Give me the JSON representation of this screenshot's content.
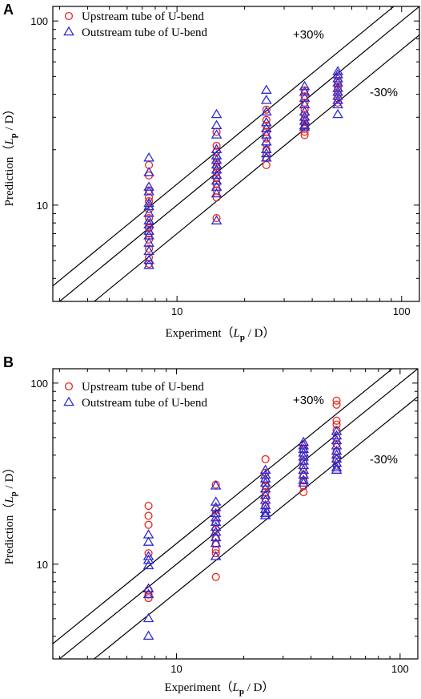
{
  "chart_data": [
    {
      "panel_label": "A",
      "type": "scatter",
      "x_scale": "log",
      "y_scale": "log",
      "xlim": [
        2.8,
        120
      ],
      "ylim": [
        3.0,
        120
      ],
      "x_ticks": [
        10,
        100
      ],
      "y_ticks": [
        10,
        100
      ],
      "x_tick_labels": [
        "10",
        "100"
      ],
      "y_tick_labels": [
        "10",
        "100"
      ],
      "xlabel": {
        "prefix": "Experiment（",
        "var": "L",
        "sub": "p",
        "suffix": " / D）"
      },
      "ylabel": {
        "prefix": "Prediction（",
        "var": "L",
        "sub": "p",
        "suffix": " / D）"
      },
      "reference_lines": [
        {
          "label": "+30%",
          "factor": 1.3
        },
        {
          "label": "",
          "factor": 1.0
        },
        {
          "label": "-30%",
          "factor": 0.7
        }
      ],
      "legend_position": "top-left",
      "series": [
        {
          "name": "Upstream tube of U-bend",
          "marker": "circle",
          "color": "#e8261f",
          "points": [
            [
              7.5,
              16.5
            ],
            [
              7.5,
              14.5
            ],
            [
              7.5,
              12
            ],
            [
              7.5,
              11
            ],
            [
              7.5,
              10.5
            ],
            [
              7.5,
              9.5
            ],
            [
              7.5,
              8.5
            ],
            [
              7.5,
              8
            ],
            [
              7.5,
              7.5
            ],
            [
              7.5,
              7
            ],
            [
              7.5,
              6.5
            ],
            [
              7.5,
              5.8
            ],
            [
              7.5,
              5.2
            ],
            [
              7.5,
              4.8
            ],
            [
              15,
              25
            ],
            [
              15,
              21
            ],
            [
              15,
              19.5
            ],
            [
              15,
              18
            ],
            [
              15,
              17
            ],
            [
              15,
              16
            ],
            [
              15,
              15
            ],
            [
              15,
              14
            ],
            [
              15,
              13
            ],
            [
              15,
              12
            ],
            [
              15,
              11
            ],
            [
              15,
              8.5
            ],
            [
              25,
              33
            ],
            [
              25,
              29
            ],
            [
              25,
              27
            ],
            [
              25,
              25
            ],
            [
              25,
              23
            ],
            [
              25,
              21.5
            ],
            [
              25,
              20
            ],
            [
              25,
              18
            ],
            [
              25,
              16.5
            ],
            [
              37,
              42
            ],
            [
              37,
              39
            ],
            [
              37,
              36
            ],
            [
              37,
              33
            ],
            [
              37,
              31
            ],
            [
              37,
              29
            ],
            [
              37,
              27.5
            ],
            [
              37,
              26
            ],
            [
              37,
              25
            ],
            [
              37,
              24
            ],
            [
              52,
              50
            ],
            [
              52,
              47
            ],
            [
              52,
              44
            ],
            [
              52,
              42
            ],
            [
              52,
              40
            ],
            [
              52,
              38
            ],
            [
              52,
              36
            ]
          ]
        },
        {
          "name": "Outstream tube of U-bend",
          "marker": "triangle",
          "color": "#2b2bd6",
          "points": [
            [
              7.5,
              18
            ],
            [
              7.5,
              15
            ],
            [
              7.5,
              12.5
            ],
            [
              7.5,
              11.8
            ],
            [
              7.5,
              10.2
            ],
            [
              7.5,
              9.8
            ],
            [
              7.5,
              9
            ],
            [
              7.5,
              8.2
            ],
            [
              7.5,
              7.8
            ],
            [
              7.5,
              7.2
            ],
            [
              7.5,
              6.8
            ],
            [
              7.5,
              6.2
            ],
            [
              7.5,
              5.6
            ],
            [
              7.5,
              5.0
            ],
            [
              7.5,
              4.7
            ],
            [
              15,
              31
            ],
            [
              15,
              27
            ],
            [
              15,
              24
            ],
            [
              15,
              20
            ],
            [
              15,
              18.5
            ],
            [
              15,
              17.5
            ],
            [
              15,
              16.5
            ],
            [
              15,
              15.5
            ],
            [
              15,
              14.5
            ],
            [
              15,
              13.5
            ],
            [
              15,
              12.5
            ],
            [
              15,
              11.5
            ],
            [
              15,
              8.2
            ],
            [
              25,
              42
            ],
            [
              25,
              37
            ],
            [
              25,
              32
            ],
            [
              25,
              28
            ],
            [
              25,
              26
            ],
            [
              25,
              24
            ],
            [
              25,
              22
            ],
            [
              25,
              20
            ],
            [
              25,
              19
            ],
            [
              25,
              18
            ],
            [
              37,
              44
            ],
            [
              37,
              41
            ],
            [
              37,
              38
            ],
            [
              37,
              35
            ],
            [
              37,
              32
            ],
            [
              37,
              30
            ],
            [
              37,
              28.5
            ],
            [
              37,
              27
            ],
            [
              37,
              26.5
            ],
            [
              52,
              53
            ],
            [
              52,
              51
            ],
            [
              52,
              48.5
            ],
            [
              52,
              46
            ],
            [
              52,
              43
            ],
            [
              52,
              41
            ],
            [
              52,
              39
            ],
            [
              52,
              37
            ],
            [
              52,
              35
            ],
            [
              52,
              31
            ]
          ]
        }
      ]
    },
    {
      "panel_label": "B",
      "type": "scatter",
      "x_scale": "log",
      "y_scale": "log",
      "xlim": [
        2.8,
        120
      ],
      "ylim": [
        3.0,
        120
      ],
      "x_ticks": [
        10,
        100
      ],
      "y_ticks": [
        10,
        100
      ],
      "x_tick_labels": [
        "10",
        "100"
      ],
      "y_tick_labels": [
        "10",
        "100"
      ],
      "xlabel": {
        "prefix": "Experiment（",
        "var": "L",
        "sub": "p",
        "suffix": " / D）"
      },
      "ylabel": {
        "prefix": "Prediction（",
        "var": "L",
        "sub": "p",
        "suffix": " / D）"
      },
      "reference_lines": [
        {
          "label": "+30%",
          "factor": 1.3
        },
        {
          "label": "",
          "factor": 1.0
        },
        {
          "label": "-30%",
          "factor": 0.7
        }
      ],
      "legend_position": "top-left",
      "series": [
        {
          "name": "Upstream tube of U-bend",
          "marker": "circle",
          "color": "#e8261f",
          "points": [
            [
              7.5,
              21
            ],
            [
              7.5,
              18.5
            ],
            [
              7.5,
              16.5
            ],
            [
              7.5,
              11.5
            ],
            [
              7.5,
              7.2
            ],
            [
              7.5,
              6.8
            ],
            [
              7.5,
              6.5
            ],
            [
              15,
              27.5
            ],
            [
              15,
              20
            ],
            [
              15,
              19
            ],
            [
              15,
              17
            ],
            [
              15,
              15.5
            ],
            [
              15,
              14
            ],
            [
              15,
              13
            ],
            [
              15,
              12
            ],
            [
              15,
              11.5
            ],
            [
              15,
              8.5
            ],
            [
              25,
              38
            ],
            [
              25,
              32
            ],
            [
              25,
              29
            ],
            [
              25,
              27
            ],
            [
              25,
              25
            ],
            [
              25,
              23
            ],
            [
              25,
              21
            ],
            [
              25,
              19.5
            ],
            [
              37,
              46
            ],
            [
              37,
              43
            ],
            [
              37,
              40
            ],
            [
              37,
              37
            ],
            [
              37,
              34
            ],
            [
              37,
              31
            ],
            [
              37,
              29
            ],
            [
              37,
              27
            ],
            [
              37,
              25
            ],
            [
              52,
              80
            ],
            [
              52,
              76
            ],
            [
              52,
              62
            ],
            [
              52,
              59
            ],
            [
              52,
              55
            ],
            [
              52,
              50
            ],
            [
              52,
              46
            ],
            [
              52,
              42
            ],
            [
              52,
              38
            ],
            [
              52,
              35
            ]
          ]
        },
        {
          "name": "Outstream tube of U-bend",
          "marker": "triangle",
          "color": "#2b2bd6",
          "points": [
            [
              7.5,
              14.5
            ],
            [
              7.5,
              13.2
            ],
            [
              7.5,
              11
            ],
            [
              7.5,
              10.5
            ],
            [
              7.5,
              9.8
            ],
            [
              7.5,
              7.3
            ],
            [
              7.5,
              6.8
            ],
            [
              7.5,
              5.0
            ],
            [
              7.5,
              4.0
            ],
            [
              15,
              27
            ],
            [
              15,
              22
            ],
            [
              15,
              20.5
            ],
            [
              15,
              19
            ],
            [
              15,
              18
            ],
            [
              15,
              17
            ],
            [
              15,
              16
            ],
            [
              15,
              15
            ],
            [
              15,
              14
            ],
            [
              15,
              13
            ],
            [
              15,
              11
            ],
            [
              25,
              33
            ],
            [
              25,
              31
            ],
            [
              25,
              29.5
            ],
            [
              25,
              28
            ],
            [
              25,
              26
            ],
            [
              25,
              24
            ],
            [
              25,
              22.5
            ],
            [
              25,
              21
            ],
            [
              25,
              20
            ],
            [
              25,
              19
            ],
            [
              25,
              18.5
            ],
            [
              37,
              47
            ],
            [
              37,
              45
            ],
            [
              37,
              43
            ],
            [
              37,
              41
            ],
            [
              37,
              39
            ],
            [
              37,
              37
            ],
            [
              37,
              35
            ],
            [
              37,
              33
            ],
            [
              37,
              31
            ],
            [
              37,
              29
            ],
            [
              37,
              28
            ],
            [
              52,
              54
            ],
            [
              52,
              51
            ],
            [
              52,
              48
            ],
            [
              52,
              45
            ],
            [
              52,
              42
            ],
            [
              52,
              40
            ],
            [
              52,
              38
            ],
            [
              52,
              36
            ],
            [
              52,
              34
            ],
            [
              52,
              33
            ]
          ]
        }
      ]
    }
  ]
}
